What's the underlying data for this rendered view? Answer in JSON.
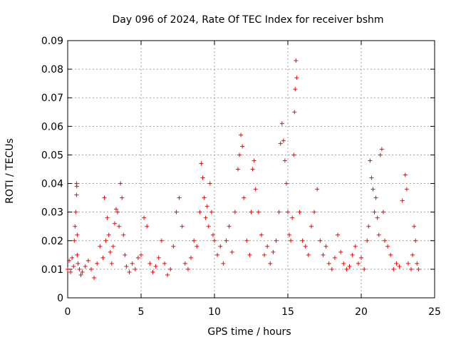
{
  "chart_data": {
    "type": "scatter",
    "title": "Day 096 of 2024, Rate Of TEC Index for receiver bshm",
    "xlabel": "GPS time / hours",
    "ylabel": "ROTI / TECUs",
    "xlim": [
      0,
      25
    ],
    "ylim": [
      0,
      0.09
    ],
    "xticks": [
      "0",
      "5",
      "10",
      "15",
      "20",
      "25"
    ],
    "yticks": [
      "0",
      "0.01",
      "0.02",
      "0.03",
      "0.04",
      "0.05",
      "0.06",
      "0.07",
      "0.08",
      "0.09"
    ],
    "grid": true,
    "marker": "+",
    "color": "#ff0000",
    "series": [
      {
        "x": [
          0.0,
          0.1,
          0.2,
          0.3,
          0.4,
          0.45,
          0.5,
          0.55,
          0.6,
          0.6,
          0.62,
          0.65,
          0.65,
          0.7,
          0.8,
          0.9,
          1.0,
          1.2,
          1.4,
          1.6,
          1.8,
          2.0,
          2.2,
          2.4,
          2.5,
          2.6,
          2.7,
          2.8,
          2.9,
          3.0,
          3.1,
          3.2,
          3.3,
          3.4,
          3.5,
          3.6,
          3.7,
          3.8,
          3.9,
          4.0,
          4.2,
          4.4,
          4.6,
          4.8,
          5.0,
          5.2,
          5.4,
          5.6,
          5.8,
          6.0,
          6.2,
          6.4,
          6.6,
          6.8,
          7.0,
          7.2,
          7.4,
          7.6,
          7.8,
          8.0,
          8.2,
          8.4,
          8.6,
          8.8,
          9.0,
          9.1,
          9.2,
          9.3,
          9.4,
          9.5,
          9.6,
          9.7,
          9.8,
          9.9,
          10.0,
          10.2,
          10.4,
          10.6,
          10.8,
          11.0,
          11.2,
          11.4,
          11.6,
          11.7,
          11.8,
          11.9,
          12.0,
          12.2,
          12.4,
          12.5,
          12.6,
          12.7,
          12.8,
          13.0,
          13.2,
          13.4,
          13.6,
          13.8,
          14.0,
          14.2,
          14.4,
          14.5,
          14.6,
          14.7,
          14.8,
          14.9,
          15.0,
          15.1,
          15.2,
          15.3,
          15.4,
          15.45,
          15.5,
          15.55,
          15.6,
          15.8,
          16.0,
          16.2,
          16.4,
          16.6,
          16.8,
          17.0,
          17.2,
          17.4,
          17.6,
          17.8,
          18.0,
          18.2,
          18.4,
          18.6,
          18.8,
          19.0,
          19.2,
          19.4,
          19.6,
          19.8,
          20.0,
          20.2,
          20.4,
          20.5,
          20.6,
          20.7,
          20.8,
          20.9,
          21.0,
          21.1,
          21.2,
          21.3,
          21.4,
          21.5,
          21.6,
          21.8,
          22.0,
          22.2,
          22.4,
          22.6,
          22.8,
          23.0,
          23.1,
          23.2,
          23.4,
          23.5,
          23.6,
          23.7,
          23.8,
          23.9
        ],
        "y": [
          0.01,
          0.013,
          0.009,
          0.014,
          0.011,
          0.02,
          0.025,
          0.03,
          0.04,
          0.036,
          0.039,
          0.022,
          0.015,
          0.012,
          0.01,
          0.008,
          0.009,
          0.011,
          0.013,
          0.01,
          0.007,
          0.012,
          0.018,
          0.014,
          0.035,
          0.02,
          0.028,
          0.022,
          0.016,
          0.012,
          0.018,
          0.026,
          0.031,
          0.03,
          0.025,
          0.04,
          0.035,
          0.022,
          0.015,
          0.011,
          0.009,
          0.012,
          0.01,
          0.014,
          0.015,
          0.028,
          0.025,
          0.012,
          0.009,
          0.011,
          0.014,
          0.02,
          0.012,
          0.008,
          0.01,
          0.018,
          0.03,
          0.035,
          0.025,
          0.012,
          0.01,
          0.014,
          0.02,
          0.018,
          0.03,
          0.047,
          0.042,
          0.035,
          0.028,
          0.032,
          0.025,
          0.04,
          0.03,
          0.022,
          0.02,
          0.015,
          0.018,
          0.012,
          0.02,
          0.025,
          0.016,
          0.03,
          0.045,
          0.05,
          0.057,
          0.053,
          0.035,
          0.02,
          0.015,
          0.03,
          0.045,
          0.048,
          0.038,
          0.03,
          0.022,
          0.015,
          0.018,
          0.012,
          0.016,
          0.02,
          0.03,
          0.054,
          0.061,
          0.055,
          0.048,
          0.04,
          0.03,
          0.022,
          0.02,
          0.028,
          0.05,
          0.065,
          0.073,
          0.083,
          0.077,
          0.03,
          0.02,
          0.018,
          0.015,
          0.025,
          0.03,
          0.038,
          0.02,
          0.015,
          0.018,
          0.012,
          0.01,
          0.014,
          0.022,
          0.016,
          0.012,
          0.01,
          0.011,
          0.015,
          0.018,
          0.012,
          0.014,
          0.01,
          0.02,
          0.025,
          0.048,
          0.042,
          0.038,
          0.03,
          0.035,
          0.028,
          0.022,
          0.05,
          0.052,
          0.03,
          0.02,
          0.018,
          0.015,
          0.01,
          0.012,
          0.011,
          0.034,
          0.043,
          0.038,
          0.012,
          0.01,
          0.015,
          0.025,
          0.02,
          0.012,
          0.01
        ]
      }
    ]
  }
}
